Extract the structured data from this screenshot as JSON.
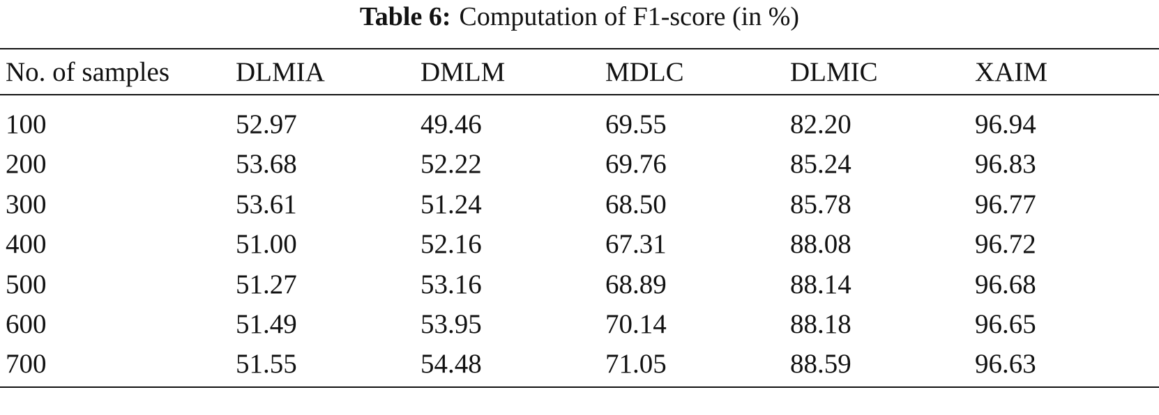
{
  "caption": {
    "label": "Table 6:",
    "text": "Computation of F1-score (in %)"
  },
  "table": {
    "header": [
      "No. of samples",
      "DLMIA",
      "DMLM",
      "MDLC",
      "DLMIC",
      "XAIM"
    ],
    "rows": [
      [
        "100",
        "52.97",
        "49.46",
        "69.55",
        "82.20",
        "96.94"
      ],
      [
        "200",
        "53.68",
        "52.22",
        "69.76",
        "85.24",
        "96.83"
      ],
      [
        "300",
        "53.61",
        "51.24",
        "68.50",
        "85.78",
        "96.77"
      ],
      [
        "400",
        "51.00",
        "52.16",
        "67.31",
        "88.08",
        "96.72"
      ],
      [
        "500",
        "51.27",
        "53.16",
        "68.89",
        "88.14",
        "96.68"
      ],
      [
        "600",
        "51.49",
        "53.95",
        "70.14",
        "88.18",
        "96.65"
      ],
      [
        "700",
        "51.55",
        "54.48",
        "71.05",
        "88.59",
        "96.63"
      ]
    ]
  }
}
